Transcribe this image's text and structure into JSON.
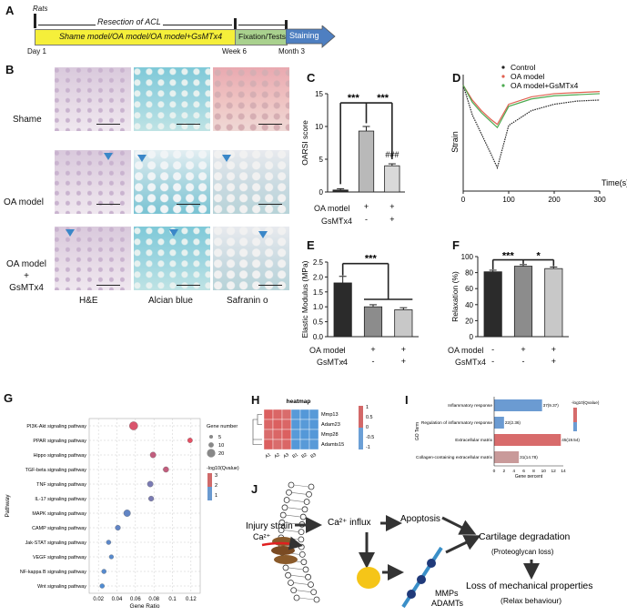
{
  "panels": {
    "A": "A",
    "B": "B",
    "C": "C",
    "D": "D",
    "E": "E",
    "F": "F",
    "G": "G",
    "H": "H",
    "I": "I",
    "J": "J"
  },
  "timeline": {
    "rats": "Rats",
    "resection": "Resection of ACL",
    "groups": "Shame model/OA model/OA model+GsMTx4",
    "fixation": "Fixation/Tests",
    "staining": "Staining",
    "day1": "Day 1",
    "week6": "Week 6",
    "month3": "Month 3",
    "colors": {
      "groups": "#f5ef3a",
      "fixation": "#a9d18e",
      "staining": "#4e7fc1"
    }
  },
  "histology": {
    "rows": [
      "Shame",
      "OA model",
      "OA model\n+\nGsMTx4"
    ],
    "cols": [
      "H&E",
      "Alcian blue",
      "Safranin o"
    ]
  },
  "groupTable": {
    "oa_label": "OA model",
    "gs_label": "GsMTx4",
    "oa": [
      "-",
      "+",
      "+"
    ],
    "gs": [
      "-",
      "-",
      "+"
    ]
  },
  "chart_data": [
    {
      "panel": "C",
      "type": "bar",
      "ylabel": "OARSI score",
      "ylim": [
        0,
        15
      ],
      "yticks": [
        0,
        5,
        10,
        15
      ],
      "values": [
        0.3,
        9.3,
        4.0
      ],
      "errors": [
        0.2,
        0.7,
        0.3
      ],
      "colors": [
        "#2b2b2b",
        "#b9b9b9",
        "#d9d9d9"
      ],
      "annotations": [
        "***",
        "***",
        "###"
      ]
    },
    {
      "panel": "D",
      "type": "line",
      "ylabel": "Strain",
      "xlabel": "Time(s)",
      "xlim": [
        0,
        300
      ],
      "xticks": [
        0,
        100,
        200,
        300
      ],
      "legend": [
        "Control",
        "OA model",
        "OA model+GsMTx4"
      ],
      "series": [
        {
          "name": "Control",
          "color": "#222222",
          "x": [
            0,
            20,
            40,
            60,
            75,
            100,
            150,
            200,
            250,
            300
          ],
          "y": [
            10,
            7.2,
            5.4,
            3.6,
            2.2,
            6.2,
            7.6,
            8.2,
            8.5,
            8.6
          ]
        },
        {
          "name": "OA model",
          "color": "#e06050",
          "x": [
            0,
            20,
            40,
            60,
            75,
            100,
            150,
            200,
            250,
            300
          ],
          "y": [
            10,
            8.6,
            7.6,
            6.8,
            6.3,
            8.2,
            8.9,
            9.2,
            9.3,
            9.4
          ]
        },
        {
          "name": "OA model+GsMTx4",
          "color": "#4caa50",
          "x": [
            0,
            20,
            40,
            60,
            75,
            100,
            150,
            200,
            250,
            300
          ],
          "y": [
            10,
            8.4,
            7.4,
            6.6,
            6.0,
            8.0,
            8.7,
            9.0,
            9.1,
            9.2
          ]
        }
      ]
    },
    {
      "panel": "E",
      "type": "bar",
      "ylabel": "Elastic Modulus (MPa)",
      "ylim": [
        0,
        2.5
      ],
      "yticks": [
        0.0,
        0.5,
        1.0,
        1.5,
        2.0,
        2.5
      ],
      "values": [
        1.8,
        1.0,
        0.9
      ],
      "errors": [
        0.22,
        0.07,
        0.07
      ],
      "colors": [
        "#2b2b2b",
        "#8c8c8c",
        "#c8c8c8"
      ],
      "annotations": [
        "***"
      ]
    },
    {
      "panel": "F",
      "type": "bar",
      "ylabel": "Relaxation (%)",
      "ylim": [
        0,
        100
      ],
      "yticks": [
        0,
        20,
        40,
        60,
        80,
        100
      ],
      "values": [
        81,
        88,
        85
      ],
      "errors": [
        2,
        2,
        2
      ],
      "colors": [
        "#2b2b2b",
        "#8c8c8c",
        "#c8c8c8"
      ],
      "annotations": [
        "***",
        "*"
      ]
    },
    {
      "panel": "G",
      "type": "scatter",
      "ylabel": "Pathway",
      "xlabel": "Gene Ratio",
      "xticks": [
        "0.02",
        "0.04",
        "0.06",
        "0.08",
        "0.1",
        "0.12"
      ],
      "xlim": [
        0.01,
        0.13
      ],
      "categories": [
        "PI3K-Akt signaling pathway",
        "PPAR signaling pathway",
        "Hippo signaling pathway",
        "TGF-beta signaling pathway",
        "TNF signaling pathway",
        "IL-17 signaling pathway",
        "MAPK signaling pathway",
        "CAMP signaling pathway",
        "Jak-STAT signaling pathway",
        "VEGF signaling pathway",
        "NF-kappa B signaling pathway",
        "Wnt signaling pathway"
      ],
      "x": [
        0.058,
        0.119,
        0.079,
        0.093,
        0.076,
        0.077,
        0.051,
        0.041,
        0.031,
        0.034,
        0.026,
        0.024
      ],
      "size": [
        20,
        9,
        12,
        11,
        12,
        10,
        15,
        10,
        8,
        7,
        8,
        8
      ],
      "color": [
        3.0,
        3.2,
        2.6,
        2.6,
        1.4,
        1.4,
        1.0,
        1.0,
        0.9,
        0.8,
        0.8,
        0.7
      ],
      "legend_size_title": "Gene number",
      "legend_sizes": [
        "5",
        "10",
        "20"
      ],
      "legend_color_title": "-log10(Qvalue)",
      "legend_colors": [
        "3",
        "2",
        "1"
      ]
    },
    {
      "panel": "H",
      "type": "heatmap",
      "title": "heatmap",
      "rows": [
        "Mmp13",
        "Adam23",
        "Mmp28",
        "Adamts15"
      ],
      "cols": [
        "A1",
        "A2",
        "A3",
        "B1",
        "B2",
        "B3"
      ],
      "scale_ticks": [
        "1",
        "0.5",
        "0",
        "-0.5",
        "-1"
      ],
      "values": [
        [
          0.9,
          0.8,
          0.7,
          -0.8,
          -0.9,
          -0.8
        ],
        [
          0.8,
          0.9,
          0.8,
          -0.9,
          -0.8,
          -0.9
        ],
        [
          0.7,
          0.8,
          0.9,
          -0.8,
          -0.9,
          -0.9
        ],
        [
          0.9,
          0.7,
          0.8,
          -0.9,
          -0.8,
          -0.8
        ]
      ]
    },
    {
      "panel": "I",
      "type": "bar",
      "ylabel": "GO Term",
      "xlabel": "Gene percent",
      "categories": [
        "Inflammatory response",
        "Regulation of inflammatory response",
        "Extracellular matrix",
        "Collagen-containing extracellular matrix"
      ],
      "values": [
        9.7,
        2,
        13.5,
        5
      ],
      "labels": [
        "37(9.37)",
        "22(2.36)",
        "45(19.54)",
        "31(14.78)"
      ],
      "xticks": [
        "0",
        "2",
        "4",
        "6",
        "8",
        "10",
        "12",
        "14"
      ],
      "colors": [
        "#6b9bd2",
        "#6b9bd2",
        "#d86b6b",
        "#c99a9a"
      ],
      "legend_title": "-log10(Qvalue)"
    }
  ],
  "mechanism": {
    "injury": "Injury strain",
    "ca": "Ca²⁺",
    "influx": "Ca²⁺ influx",
    "apoptosis": "Apoptosis",
    "degradation": "Cartilage degradation",
    "proteoglycan": "(Proteoglycan loss)",
    "mmps": "MMPs",
    "adamts": "ADAMTs",
    "loss": "Loss of mechanical properties",
    "relax": "(Relax behaviour)"
  }
}
